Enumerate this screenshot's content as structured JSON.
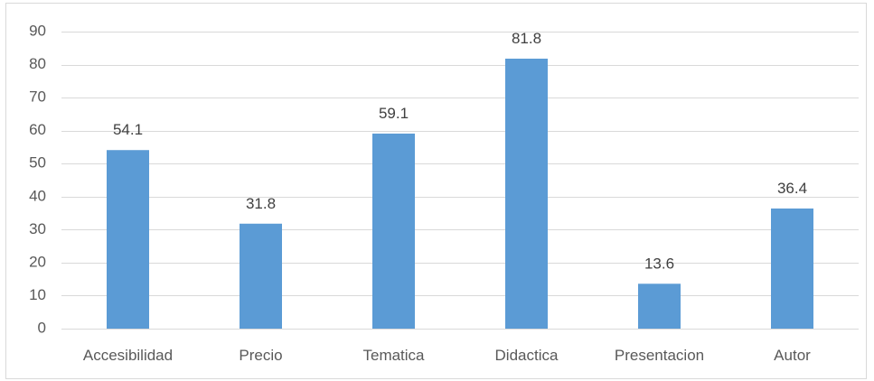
{
  "chart_data": {
    "type": "bar",
    "categories": [
      "Accesibilidad",
      "Precio",
      "Tematica",
      "Didactica",
      "Presentacion",
      "Autor"
    ],
    "values": [
      54.1,
      31.8,
      59.1,
      81.8,
      13.6,
      36.4
    ],
    "data_labels": [
      "54.1",
      "31.8",
      "59.1",
      "81.8",
      "13.6",
      "36.4"
    ],
    "y_ticks": [
      "0",
      "10",
      "20",
      "30",
      "40",
      "50",
      "60",
      "70",
      "80",
      "90"
    ],
    "ylim": [
      0,
      90
    ],
    "grid": true,
    "legend": "none",
    "title": "",
    "xlabel": "",
    "ylabel": "",
    "bar_color": "#5b9bd5"
  }
}
